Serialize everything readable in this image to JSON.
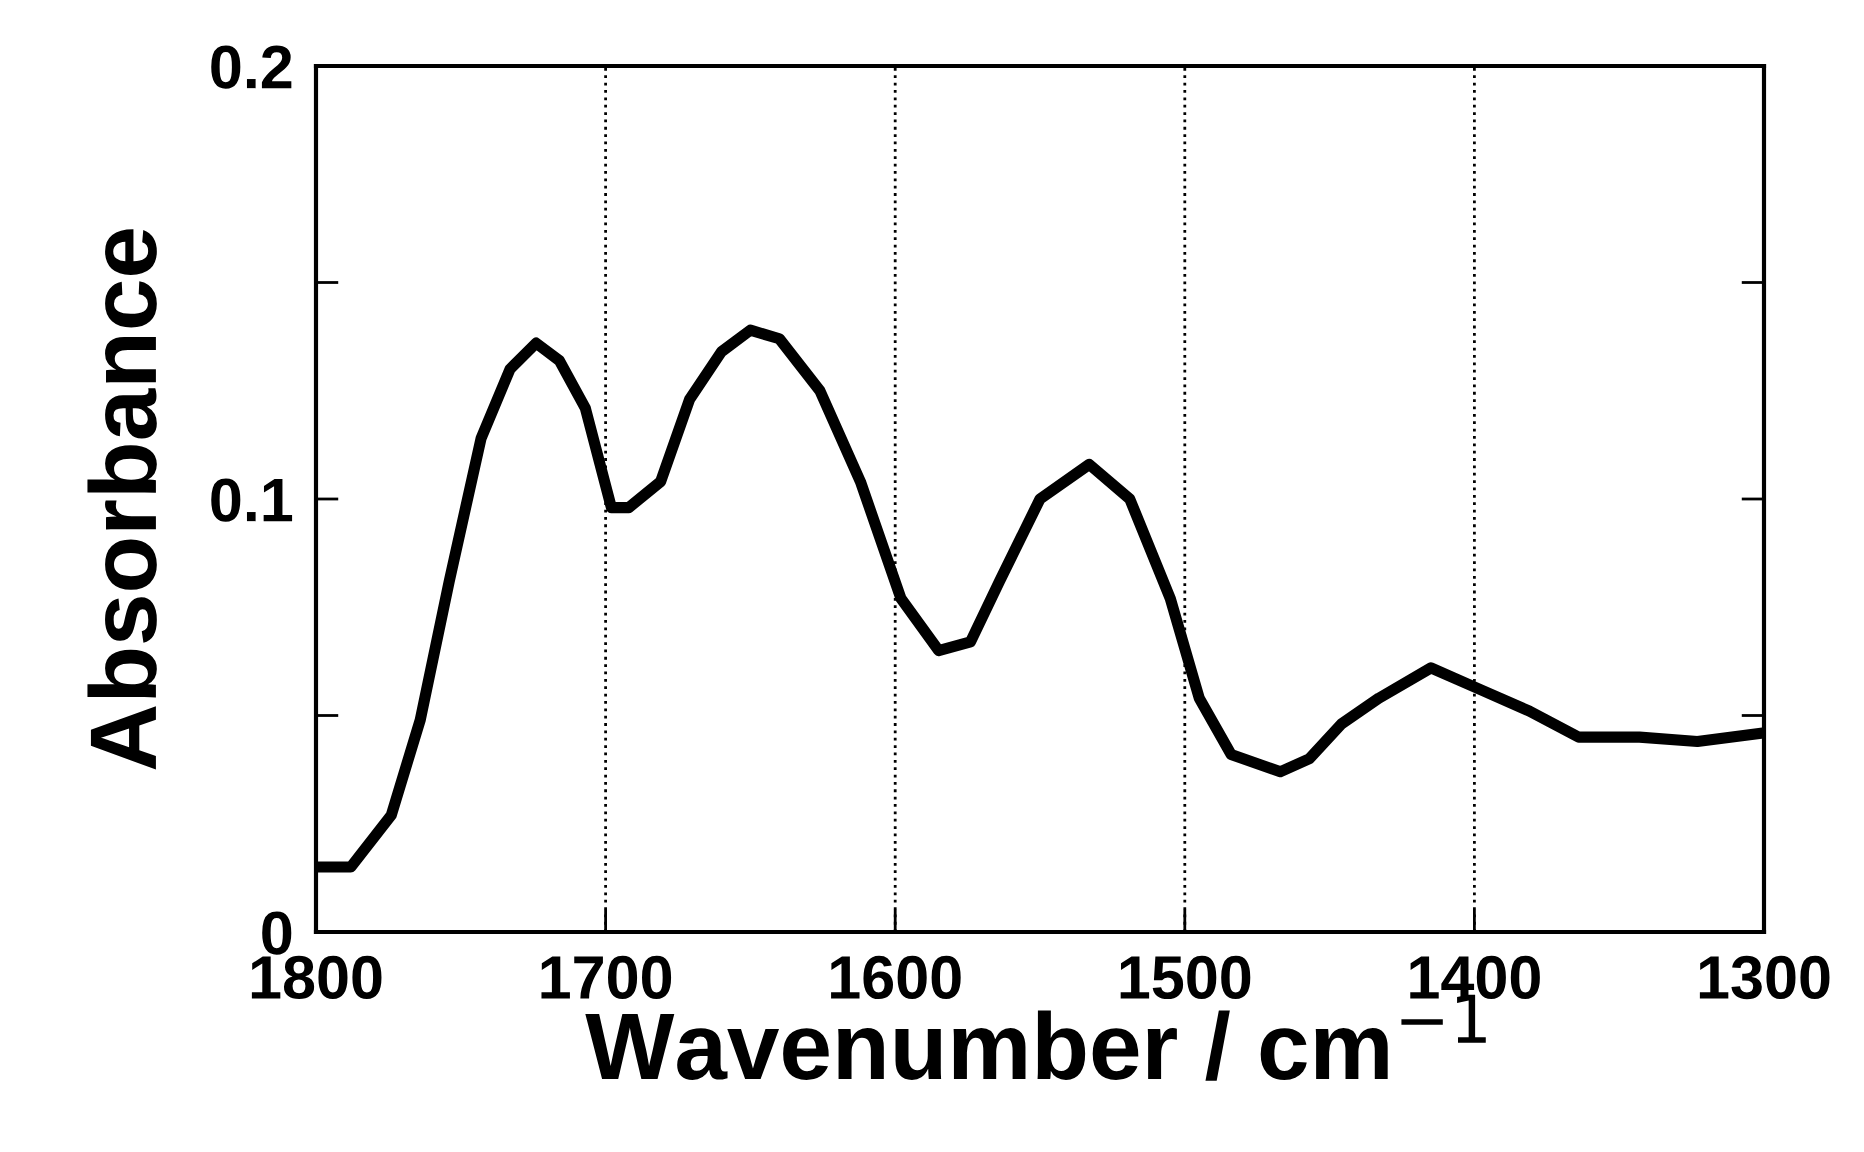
{
  "chart_data": {
    "type": "line",
    "xlabel": "Wavenumber / cm$^{−1}$",
    "ylabel": "Absorbance",
    "xlim": [
      1800,
      1300
    ],
    "xticks": [
      1800,
      1700,
      1600,
      1500,
      1400,
      1300
    ],
    "ylim": [
      0,
      0.2
    ],
    "yticks": [
      0,
      {
        "value": 0.05,
        "label": null
      },
      0.1,
      {
        "value": 0.15,
        "label": null
      },
      0.2
    ],
    "grid": "x",
    "line_style": "solid",
    "marker": "none",
    "series": [
      {
        "color": "#000000",
        "x": [
          1800,
          1788,
          1774,
          1764,
          1754,
          1743,
          1733,
          1724,
          1716,
          1707,
          1698,
          1692,
          1681,
          1671,
          1660,
          1650,
          1640,
          1626,
          1612,
          1598,
          1585,
          1574,
          1564,
          1550,
          1533,
          1519,
          1505,
          1495,
          1484,
          1467,
          1457,
          1446,
          1433,
          1415,
          1398,
          1381,
          1364,
          1343,
          1323,
          1300
        ],
        "values": [
          0.015,
          0.015,
          0.027,
          0.049,
          0.081,
          0.114,
          0.13,
          0.136,
          0.132,
          0.121,
          0.098,
          0.098,
          0.104,
          0.123,
          0.134,
          0.139,
          0.137,
          0.125,
          0.104,
          0.077,
          0.065,
          0.067,
          0.081,
          0.1,
          0.108,
          0.1,
          0.077,
          0.054,
          0.041,
          0.037,
          0.04,
          0.048,
          0.054,
          0.061,
          0.056,
          0.051,
          0.045,
          0.045,
          0.044,
          0.046
        ]
      }
    ]
  }
}
